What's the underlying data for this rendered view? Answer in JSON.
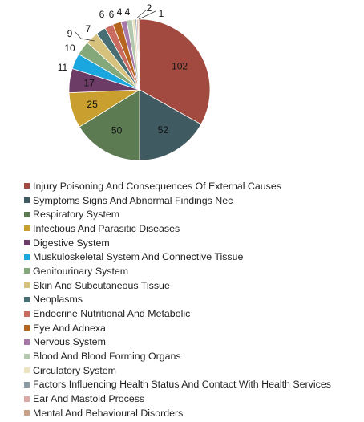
{
  "chart_data": {
    "type": "pie",
    "title": "",
    "start_angle_deg": 0,
    "direction": "clockwise",
    "legend_position": "bottom",
    "slices": [
      {
        "label": "Injury Poisoning And Consequences Of External Causes",
        "value": 102,
        "color": "#a34a40"
      },
      {
        "label": "Symptoms Signs And Abnormal Findings Nec",
        "value": 52,
        "color": "#3f5a60"
      },
      {
        "label": "Respiratory System",
        "value": 50,
        "color": "#5c7b53"
      },
      {
        "label": "Infectious And Parasitic Diseases",
        "value": 25,
        "color": "#c9a02f"
      },
      {
        "label": "Digestive System",
        "value": 17,
        "color": "#6c3b66"
      },
      {
        "label": "Muskuloskeletal System And Connective Tissue",
        "value": 11,
        "color": "#1aa7e0"
      },
      {
        "label": "Genitourinary System",
        "value": 10,
        "color": "#84a879"
      },
      {
        "label": "Skin And Subcutaneous Tissue",
        "value": 9,
        "color": "#d6c27d"
      },
      {
        "label": "Neoplasms",
        "value": 7,
        "color": "#476f73"
      },
      {
        "label": "Endocrine Nutritional And Metabolic",
        "value": 6,
        "color": "#c96b5f"
      },
      {
        "label": "Eye And Adnexa",
        "value": 6,
        "color": "#b5651d"
      },
      {
        "label": "Nervous System",
        "value": 4,
        "color": "#a678a8"
      },
      {
        "label": "Blood And Blood Forming Organs",
        "value": 4,
        "color": "#b4c8b0"
      },
      {
        "label": "Circulatory System",
        "value": 2,
        "color": "#ece3c0"
      },
      {
        "label": "Factors Influencing Health Status And Contact With Health Services",
        "value": 1,
        "color": "#8b9ca4"
      },
      {
        "label": "Ear And Mastoid Process",
        "value": 1,
        "color": "#dcaaa6"
      },
      {
        "label": "Mental And Behavioural Disorders",
        "value": 1,
        "color": "#c9a088"
      }
    ],
    "data_labels": [
      "102",
      "52",
      "50",
      "25",
      "17",
      "11",
      "10",
      "9",
      "7",
      "6",
      "6",
      "4",
      "4",
      "2",
      "1"
    ]
  }
}
